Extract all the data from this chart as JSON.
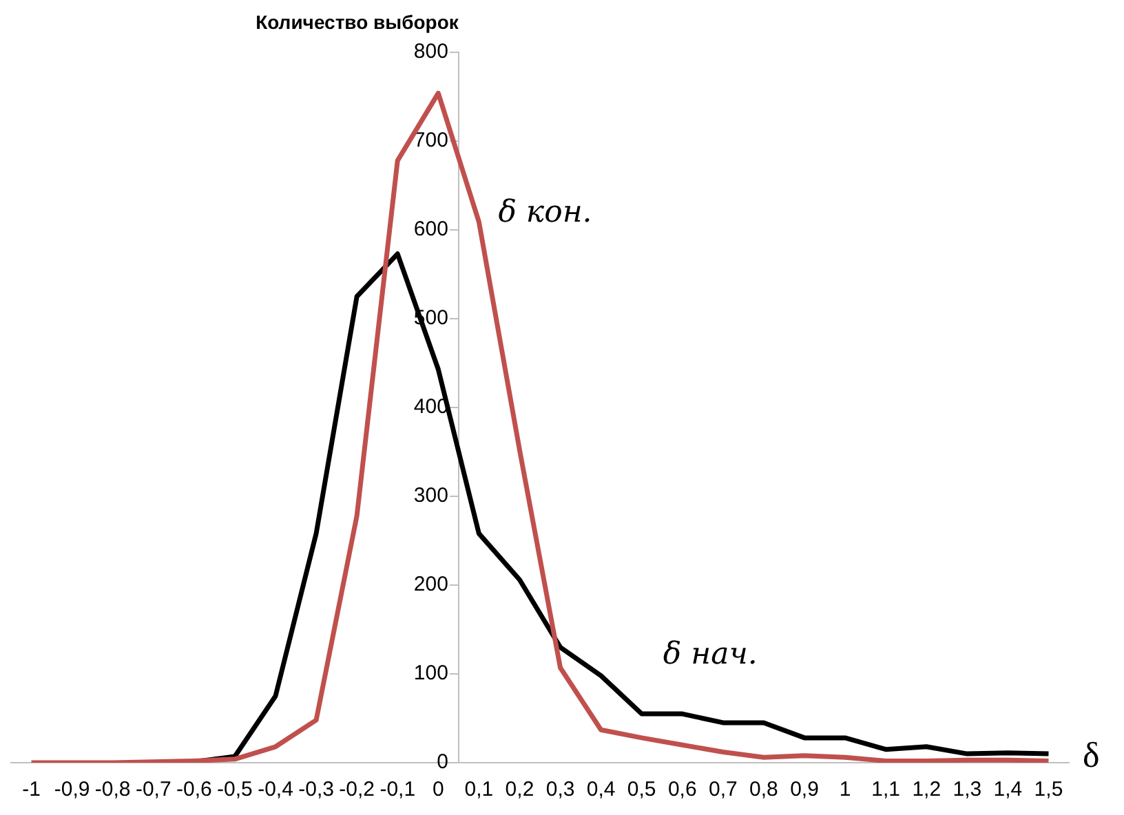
{
  "chart_data": {
    "type": "line",
    "ylabel": "Количество выборок",
    "xlabel": "δ",
    "categories": [
      "-1",
      "-0,9",
      "-0,8",
      "-0,7",
      "-0,6",
      "-0,5",
      "-0,4",
      "-0,3",
      "-0,2",
      "-0,1",
      "0",
      "0,1",
      "0,2",
      "0,3",
      "0,4",
      "0,5",
      "0,6",
      "0,7",
      "0,8",
      "0,9",
      "1",
      "1,1",
      "1,2",
      "1,3",
      "1,4",
      "1,5"
    ],
    "series": [
      {
        "name": "δ нач.",
        "color": "#000000",
        "values": [
          null,
          null,
          null,
          0,
          1,
          7,
          75,
          258,
          525,
          573,
          443,
          258,
          206,
          130,
          98,
          55,
          55,
          45,
          45,
          28,
          28,
          15,
          18,
          10,
          11,
          10
        ]
      },
      {
        "name": "δ кон.",
        "color": "#c0504d",
        "values": [
          0,
          0,
          0,
          1,
          2,
          4,
          18,
          48,
          278,
          678,
          754,
          609,
          352,
          107,
          37,
          28,
          20,
          12,
          6,
          8,
          6,
          2,
          2,
          3,
          3,
          2
        ]
      }
    ],
    "ylim": [
      0,
      800
    ],
    "yticks": [
      0,
      100,
      200,
      300,
      400,
      500,
      600,
      700,
      800
    ],
    "grid": false,
    "legend": false,
    "marker": "none",
    "line_style": "solid"
  }
}
